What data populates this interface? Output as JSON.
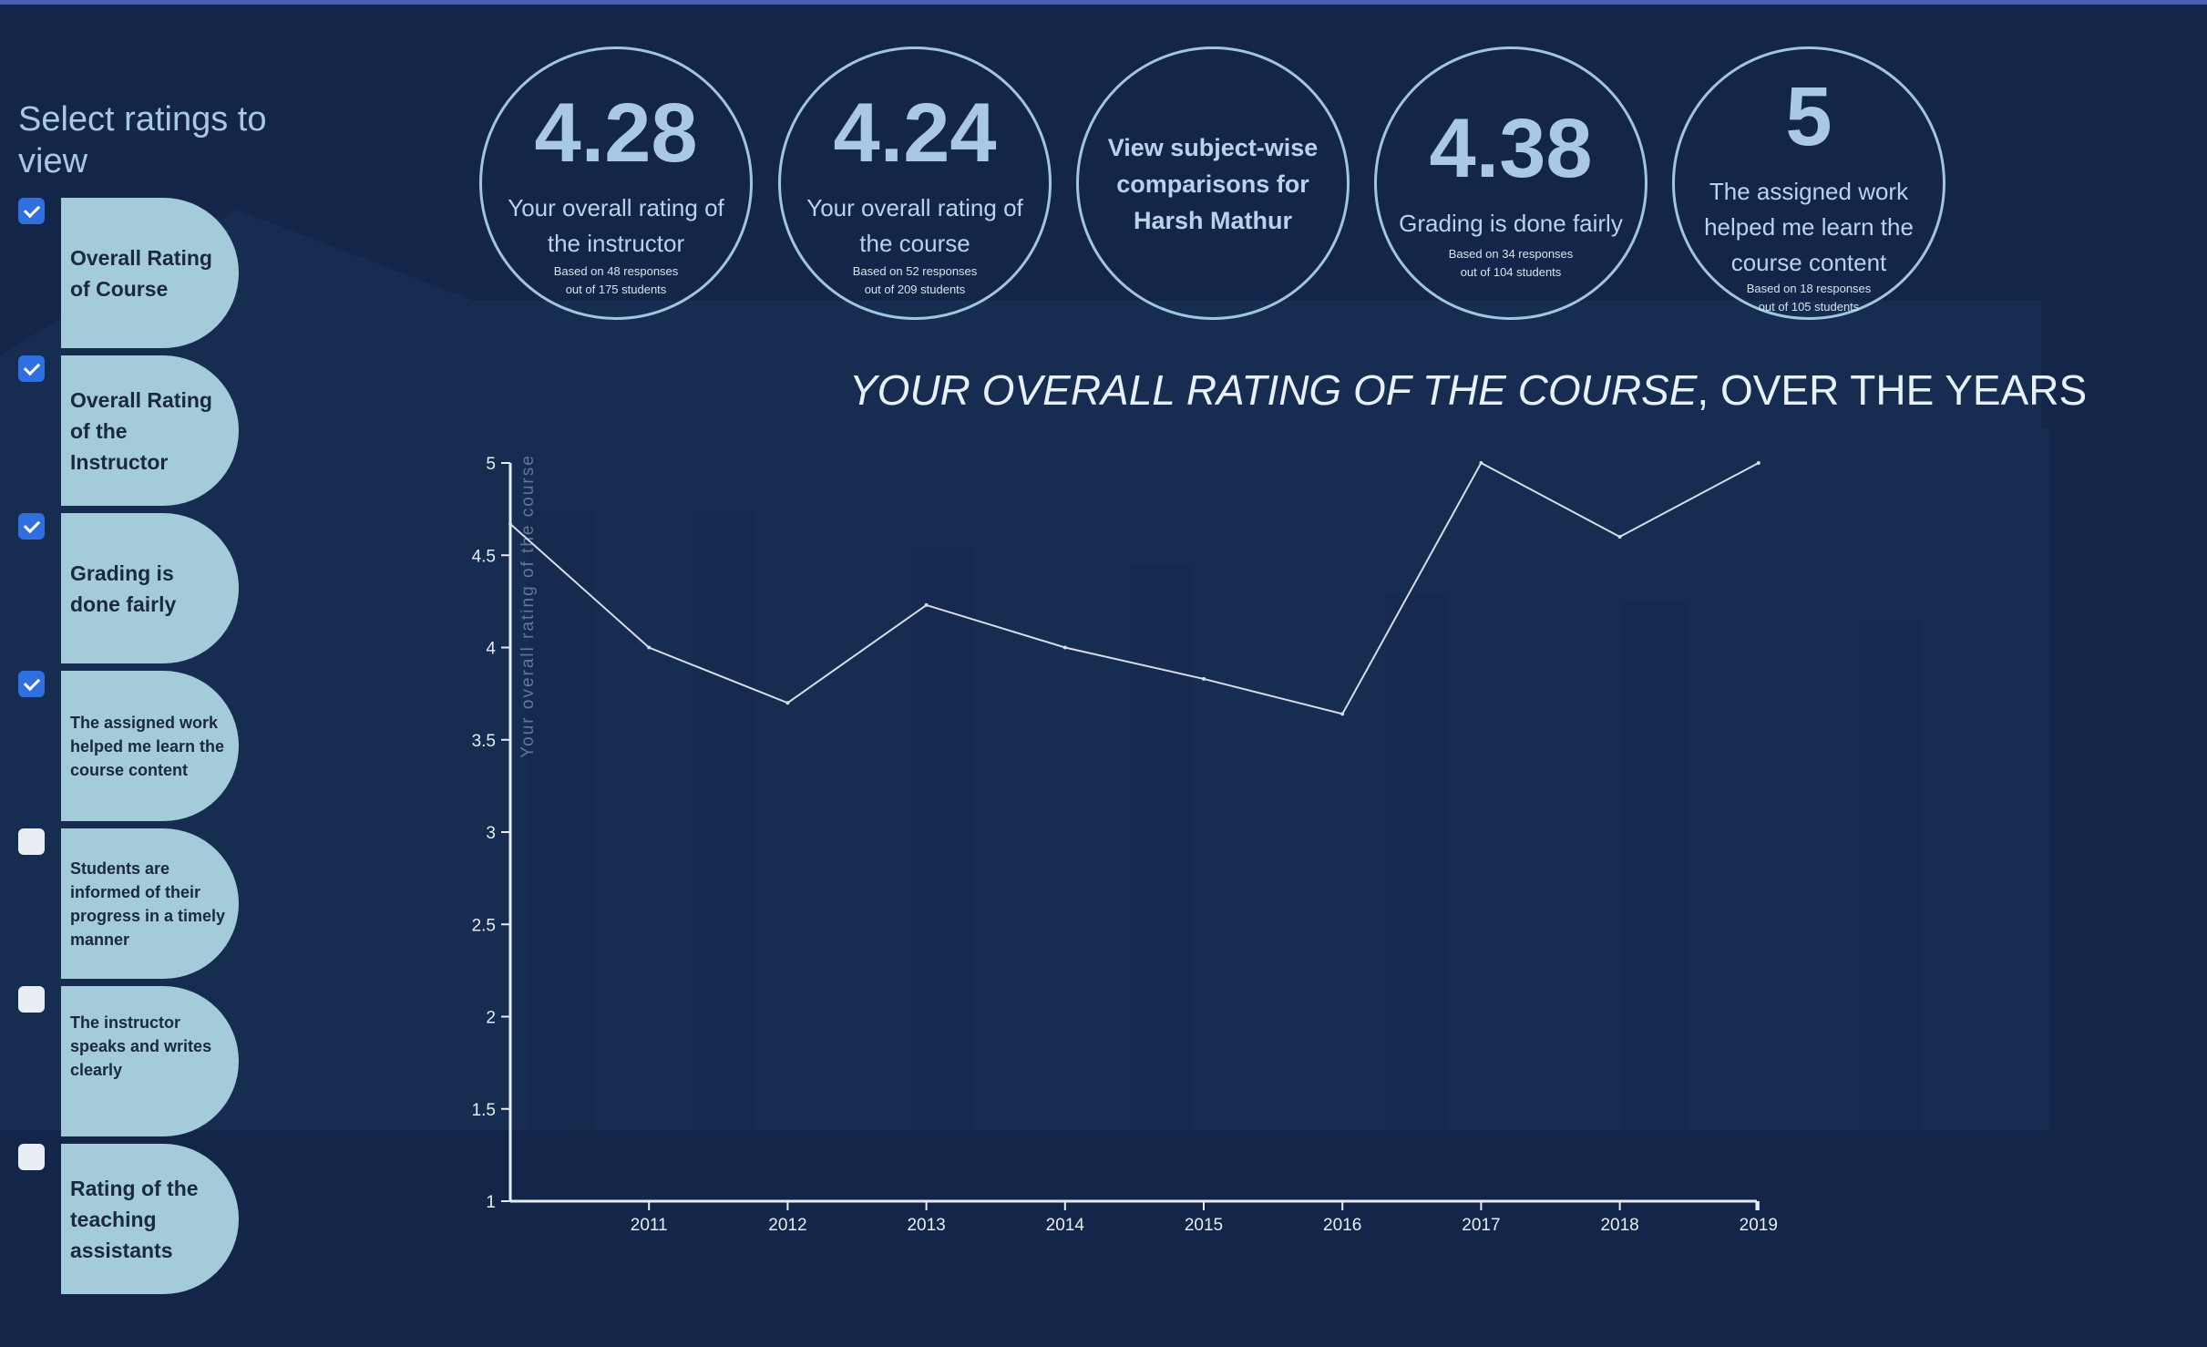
{
  "sidebar": {
    "title": "Select ratings to view",
    "items": [
      {
        "label": "Overall Rating of Course",
        "checked": true
      },
      {
        "label": "Overall Rating of the Instructor",
        "checked": true
      },
      {
        "label": "Grading is done fairly",
        "checked": true
      },
      {
        "label": "The assigned work helped me learn the course content",
        "checked": true
      },
      {
        "label": "Students are informed of their progress in a timely manner",
        "checked": false
      },
      {
        "label": "The instructor speaks and writes clearly",
        "checked": false
      },
      {
        "label": "Rating of the teaching assistants",
        "checked": false
      }
    ]
  },
  "stats": [
    {
      "value": "4.28",
      "label": "Your overall rating of the instructor",
      "note_1": "Based on 48 responses",
      "note_2": "out of 175 students"
    },
    {
      "value": "4.24",
      "label": "Your overall rating of the course",
      "note_1": "Based on 52 responses",
      "note_2": "out of 209 students"
    },
    {
      "link_text": "View subject-wise comparisons for Harsh Mathur"
    },
    {
      "value": "4.38",
      "label": "Grading is done fairly",
      "note_1": "Based on 34 responses",
      "note_2": "out of 104 students"
    },
    {
      "value": "5",
      "label": "The assigned work helped me learn the course content",
      "note_1": "Based on 18 responses",
      "note_2": "out of 105 students"
    }
  ],
  "chart": {
    "title_italic": "YOUR OVERALL RATING OF THE COURSE",
    "title_rest": ", OVER THE YEARS"
  },
  "colors": {
    "background": "#13264a",
    "accent_strip": "#4a5fb4",
    "pill": "#a3cbd9",
    "checkbox_checked": "#2f6fe0",
    "text_light": "#a9c8e6",
    "line": "#d5dde8"
  },
  "chart_data": {
    "type": "line",
    "title": "YOUR OVERALL RATING OF THE COURSE, OVER THE YEARS",
    "xlabel": "",
    "ylabel": "Your overall rating of the course",
    "x": [
      "2010",
      "2011",
      "2012",
      "2013",
      "2014",
      "2015",
      "2016",
      "2017",
      "2018",
      "2019"
    ],
    "y": [
      4.67,
      4.0,
      3.7,
      4.23,
      4.0,
      3.83,
      3.64,
      5.0,
      4.6,
      5.0
    ],
    "x_ticks": [
      "2011",
      "2012",
      "2013",
      "2014",
      "2015",
      "2016",
      "2017",
      "2018",
      "2019"
    ],
    "y_ticks": [
      "1",
      "1.5",
      "2",
      "2.5",
      "3",
      "3.5",
      "4",
      "4.5",
      "5"
    ],
    "ylim": [
      1,
      5
    ],
    "grid": false,
    "legend": "none"
  }
}
